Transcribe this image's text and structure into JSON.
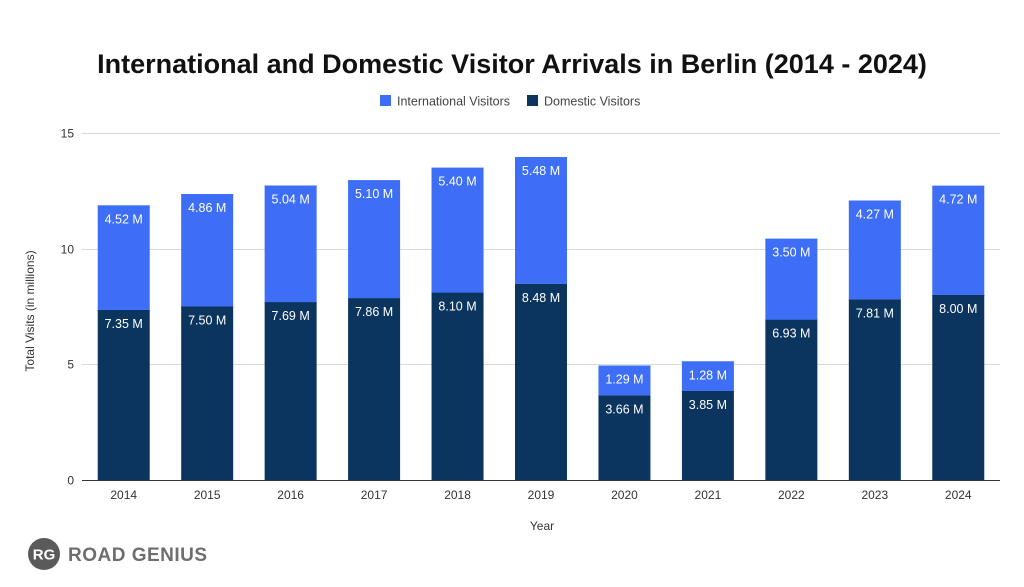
{
  "chart_data": {
    "type": "bar",
    "stacked": true,
    "title": "International and Domestic Visitor Arrivals in Berlin (2014 - 2024)",
    "xlabel": "Year",
    "ylabel": "Total Visits (in millions)",
    "categories": [
      "2014",
      "2015",
      "2016",
      "2017",
      "2018",
      "2019",
      "2020",
      "2021",
      "2022",
      "2023",
      "2024"
    ],
    "series": [
      {
        "name": "Domestic Visitors",
        "color": "#0b355e",
        "values": [
          7.35,
          7.5,
          7.69,
          7.86,
          8.1,
          8.48,
          3.66,
          3.85,
          6.93,
          7.81,
          8.0
        ],
        "labels": [
          "7.35 M",
          "7.50 M",
          "7.69 M",
          "7.86 M",
          "8.10 M",
          "8.48 M",
          "3.66 M",
          "3.85 M",
          "6.93 M",
          "7.81 M",
          "8.00 M"
        ]
      },
      {
        "name": "International Visitors",
        "color": "#3d6ef5",
        "values": [
          4.52,
          4.86,
          5.04,
          5.1,
          5.4,
          5.48,
          1.29,
          1.28,
          3.5,
          4.27,
          4.72
        ],
        "labels": [
          "4.52 M",
          "4.86 M",
          "5.04 M",
          "5.10 M",
          "5.40 M",
          "5.48 M",
          "1.29 M",
          "1.28 M",
          "3.50 M",
          "4.27 M",
          "4.72 M"
        ]
      }
    ],
    "legend_order": [
      "International Visitors",
      "Domestic Visitors"
    ],
    "legend_position": "top",
    "ylim": [
      0,
      15
    ],
    "yticks": [
      "0",
      "5",
      "10",
      "15"
    ],
    "ytick_values": [
      0,
      5,
      10,
      15
    ],
    "grid": true
  },
  "branding": {
    "logo_mark": "RG",
    "logo_text": "ROAD GENIUS",
    "logo_color": "#5a5a5a"
  }
}
